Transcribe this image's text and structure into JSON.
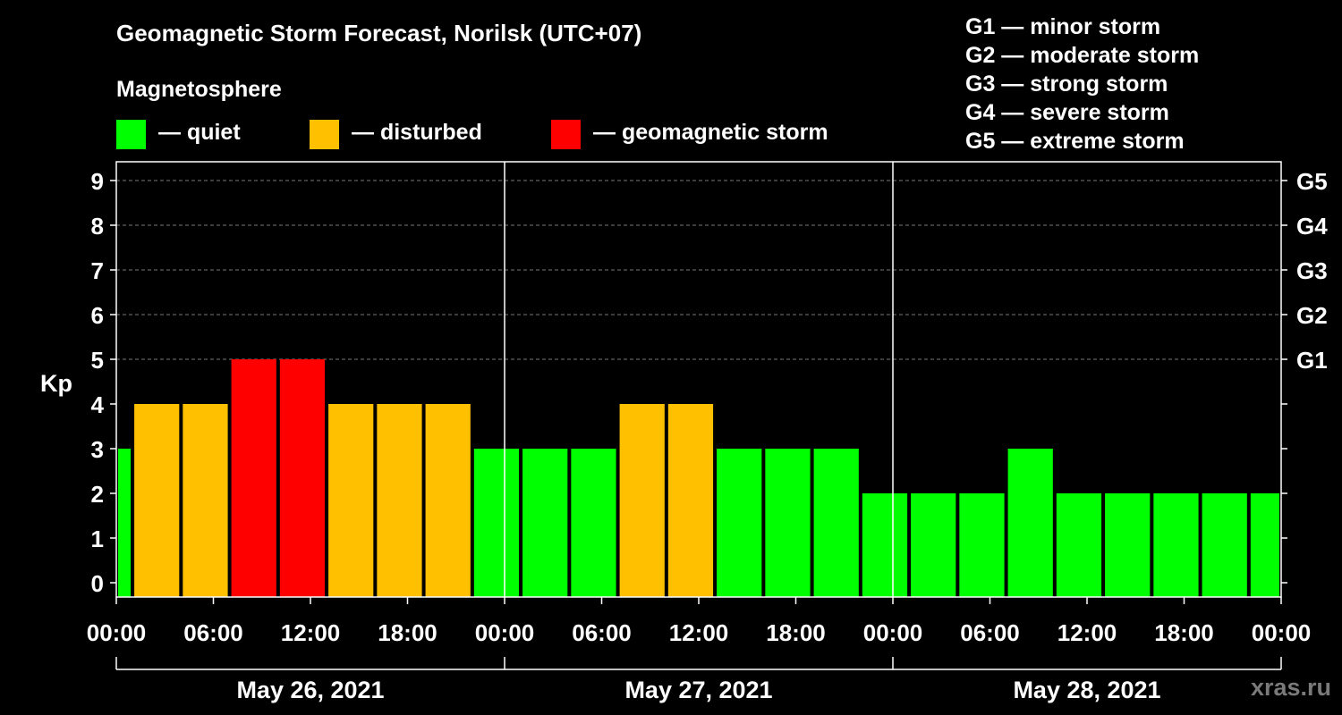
{
  "title": "Geomagnetic Storm Forecast, Norilsk (UTC+07)",
  "subtitle": "Magnetosphere",
  "legend": [
    {
      "label": "— quiet",
      "color": "#00ff00"
    },
    {
      "label": "— disturbed",
      "color": "#ffc000"
    },
    {
      "label": "— geomagnetic storm",
      "color": "#ff0000"
    }
  ],
  "storm_scale": [
    "G1 — minor storm",
    "G2 — moderate storm",
    "G3 — strong storm",
    "G4 — severe storm",
    "G5 — extreme storm"
  ],
  "credit": "xras.ru",
  "colors": {
    "quiet": "#00ff00",
    "disturbed": "#ffc000",
    "storm": "#ff0000",
    "background": "#000000",
    "axis": "#ffffff"
  },
  "chart_data": {
    "type": "bar",
    "ylabel": "Kp",
    "ylim": [
      0,
      9
    ],
    "yticks": [
      "0",
      "1",
      "2",
      "3",
      "4",
      "5",
      "6",
      "7",
      "8",
      "9"
    ],
    "right_ticks": [
      {
        "kp": 5,
        "label": "G1"
      },
      {
        "kp": 6,
        "label": "G2"
      },
      {
        "kp": 7,
        "label": "G3"
      },
      {
        "kp": 8,
        "label": "G4"
      },
      {
        "kp": 9,
        "label": "G5"
      }
    ],
    "x_hours_range": [
      0,
      72
    ],
    "xticks": [
      {
        "hour": 0,
        "label": "00:00"
      },
      {
        "hour": 6,
        "label": "06:00"
      },
      {
        "hour": 12,
        "label": "12:00"
      },
      {
        "hour": 18,
        "label": "18:00"
      },
      {
        "hour": 24,
        "label": "00:00"
      },
      {
        "hour": 30,
        "label": "06:00"
      },
      {
        "hour": 36,
        "label": "12:00"
      },
      {
        "hour": 42,
        "label": "18:00"
      },
      {
        "hour": 48,
        "label": "00:00"
      },
      {
        "hour": 54,
        "label": "06:00"
      },
      {
        "hour": 60,
        "label": "12:00"
      },
      {
        "hour": 66,
        "label": "18:00"
      },
      {
        "hour": 72,
        "label": "00:00"
      }
    ],
    "days": [
      {
        "label": "May 26, 2021",
        "start": 0,
        "end": 24
      },
      {
        "label": "May 27, 2021",
        "start": 24,
        "end": 48
      },
      {
        "label": "May 28, 2021",
        "start": 48,
        "end": 72
      }
    ],
    "bars": [
      {
        "start": 0,
        "end": 1,
        "kp": 3,
        "level": "quiet"
      },
      {
        "start": 1,
        "end": 4,
        "kp": 4,
        "level": "disturbed"
      },
      {
        "start": 4,
        "end": 7,
        "kp": 4,
        "level": "disturbed"
      },
      {
        "start": 7,
        "end": 10,
        "kp": 5,
        "level": "storm"
      },
      {
        "start": 10,
        "end": 13,
        "kp": 5,
        "level": "storm"
      },
      {
        "start": 13,
        "end": 16,
        "kp": 4,
        "level": "disturbed"
      },
      {
        "start": 16,
        "end": 19,
        "kp": 4,
        "level": "disturbed"
      },
      {
        "start": 19,
        "end": 22,
        "kp": 4,
        "level": "disturbed"
      },
      {
        "start": 22,
        "end": 25,
        "kp": 3,
        "level": "quiet"
      },
      {
        "start": 25,
        "end": 28,
        "kp": 3,
        "level": "quiet"
      },
      {
        "start": 28,
        "end": 31,
        "kp": 3,
        "level": "quiet"
      },
      {
        "start": 31,
        "end": 34,
        "kp": 4,
        "level": "disturbed"
      },
      {
        "start": 34,
        "end": 37,
        "kp": 4,
        "level": "disturbed"
      },
      {
        "start": 37,
        "end": 40,
        "kp": 3,
        "level": "quiet"
      },
      {
        "start": 40,
        "end": 43,
        "kp": 3,
        "level": "quiet"
      },
      {
        "start": 43,
        "end": 46,
        "kp": 3,
        "level": "quiet"
      },
      {
        "start": 46,
        "end": 49,
        "kp": 2,
        "level": "quiet"
      },
      {
        "start": 49,
        "end": 52,
        "kp": 2,
        "level": "quiet"
      },
      {
        "start": 52,
        "end": 55,
        "kp": 2,
        "level": "quiet"
      },
      {
        "start": 55,
        "end": 58,
        "kp": 3,
        "level": "quiet"
      },
      {
        "start": 58,
        "end": 61,
        "kp": 2,
        "level": "quiet"
      },
      {
        "start": 61,
        "end": 64,
        "kp": 2,
        "level": "quiet"
      },
      {
        "start": 64,
        "end": 67,
        "kp": 2,
        "level": "quiet"
      },
      {
        "start": 67,
        "end": 70,
        "kp": 2,
        "level": "quiet"
      },
      {
        "start": 70,
        "end": 72,
        "kp": 2,
        "level": "quiet"
      }
    ]
  }
}
